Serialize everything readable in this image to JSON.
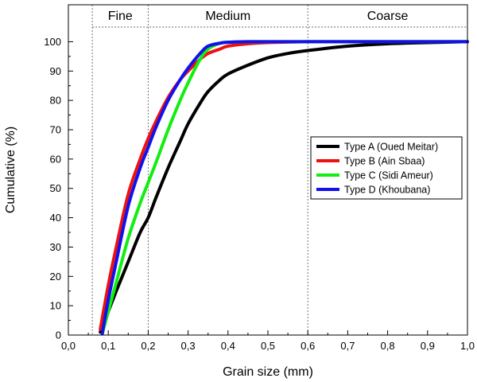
{
  "chart_data": {
    "type": "line",
    "title": "",
    "xlabel": "Grain size (mm)",
    "ylabel": "Cumulative (%)",
    "xlim": [
      0,
      1.0
    ],
    "ylim": [
      0,
      105
    ],
    "xticks": [
      0,
      0.1,
      0.2,
      0.3,
      0.4,
      0.5,
      0.6,
      0.7,
      0.8,
      0.9,
      1.0
    ],
    "xtick_labels": [
      "0,0",
      "0,1",
      "0,2",
      "0,3",
      "0,4",
      "0,5",
      "0,6",
      "0,7",
      "0,8",
      "0,9",
      "1,0"
    ],
    "yticks": [
      0,
      10,
      20,
      30,
      40,
      50,
      60,
      70,
      80,
      90,
      100
    ],
    "ytick_labels": [
      "0",
      "10",
      "20",
      "30",
      "40",
      "50",
      "60",
      "70",
      "80",
      "90",
      "100"
    ],
    "zones": [
      {
        "label": "Fine",
        "from": 0.06,
        "to": 0.2
      },
      {
        "label": "Medium",
        "from": 0.2,
        "to": 0.6
      },
      {
        "label": "Coarse",
        "from": 0.6,
        "to": 1.0
      }
    ],
    "zone_boundaries": [
      0.06,
      0.2,
      0.6
    ],
    "legend_position": "center-right",
    "series": [
      {
        "name": "Type A (Oued Meitar)",
        "color": "#000000",
        "x": [
          0.08,
          0.1,
          0.12,
          0.15,
          0.18,
          0.2,
          0.22,
          0.25,
          0.28,
          0.3,
          0.33,
          0.35,
          0.38,
          0.4,
          0.45,
          0.5,
          0.55,
          0.6,
          0.7,
          0.8,
          0.9,
          1.0
        ],
        "y": [
          1,
          8,
          15,
          25,
          35,
          40,
          47,
          57,
          66,
          72,
          79,
          83,
          87,
          89,
          92,
          94.5,
          96,
          97,
          98.5,
          99.3,
          99.7,
          100
        ]
      },
      {
        "name": "Type B (Ain Sbaa)",
        "color": "#ee1111",
        "x": [
          0.08,
          0.1,
          0.12,
          0.15,
          0.18,
          0.2,
          0.22,
          0.25,
          0.28,
          0.3,
          0.33,
          0.35,
          0.38,
          0.4,
          0.45,
          0.5,
          0.6,
          0.8,
          1.0
        ],
        "y": [
          2,
          17,
          30,
          48,
          60,
          67,
          73,
          81,
          87,
          90,
          94,
          96,
          97.5,
          98.5,
          99.3,
          99.7,
          100,
          100,
          100
        ]
      },
      {
        "name": "Type C (Sidi Ameur)",
        "color": "#11ee11",
        "x": [
          0.085,
          0.1,
          0.12,
          0.15,
          0.18,
          0.2,
          0.22,
          0.25,
          0.28,
          0.3,
          0.33,
          0.35,
          0.38,
          0.4,
          0.45,
          0.5,
          0.6,
          0.8,
          1.0
        ],
        "y": [
          0.5,
          8,
          18,
          33,
          45,
          52,
          59,
          70,
          80,
          86,
          94,
          97.5,
          99.5,
          99.8,
          100,
          100,
          100,
          100,
          100
        ]
      },
      {
        "name": "Type D (Khoubana)",
        "color": "#1111ee",
        "x": [
          0.085,
          0.1,
          0.12,
          0.15,
          0.18,
          0.2,
          0.22,
          0.25,
          0.28,
          0.3,
          0.33,
          0.35,
          0.38,
          0.4,
          0.45,
          0.5,
          0.6,
          0.8,
          1.0
        ],
        "y": [
          0.5,
          12,
          25,
          44,
          57,
          64,
          71,
          80,
          87,
          91,
          96,
          98.5,
          99.5,
          99.8,
          100,
          100,
          100,
          100,
          100
        ]
      }
    ]
  }
}
